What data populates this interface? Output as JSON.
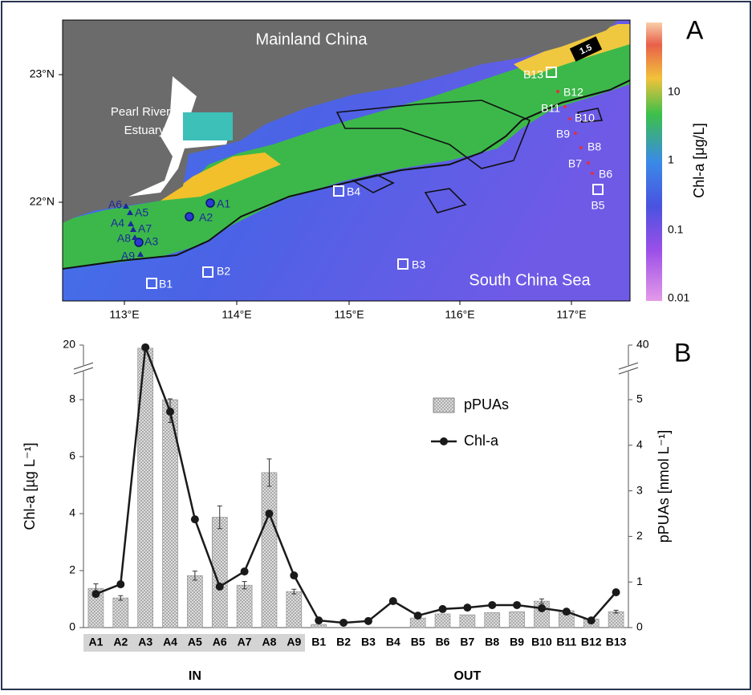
{
  "panels": [
    "A",
    "B"
  ],
  "map": {
    "labels": {
      "mainland": "Mainland China",
      "estuary": [
        "Pearl River",
        "Estuary"
      ],
      "sea": "South China Sea",
      "contour": "1.5"
    },
    "lon_ticks": [
      "113°E",
      "114°E",
      "115°E",
      "116°E",
      "117°E"
    ],
    "lat_ticks": [
      "23°N",
      "22°N"
    ],
    "colorbar": {
      "title": "Chl-a [μg/L]",
      "ticks": [
        "10",
        "1",
        "0.1",
        "0.01"
      ]
    },
    "stations": [
      "A1",
      "A2",
      "A3",
      "A4",
      "A5",
      "A6",
      "A7",
      "A8",
      "A9",
      "B1",
      "B2",
      "B3",
      "B4",
      "B5",
      "B6",
      "B7",
      "B8",
      "B9",
      "B10",
      "B11",
      "B12",
      "B13"
    ]
  },
  "chart_data": {
    "type": "bar",
    "categories": [
      "A1",
      "A2",
      "A3",
      "A4",
      "A5",
      "A6",
      "A7",
      "A8",
      "A9",
      "B1",
      "B2",
      "B3",
      "B4",
      "B5",
      "B6",
      "B7",
      "B8",
      "B9",
      "B10",
      "B11",
      "B12",
      "B13"
    ],
    "groups": [
      "IN",
      "OUT"
    ],
    "ylabel": "Chl-a [µg L⁻¹]",
    "y2label": "pPUAs [nmol L⁻¹]",
    "ylim": [
      0,
      20
    ],
    "yticks": [
      0,
      2,
      4,
      6,
      8,
      20
    ],
    "y2lim": [
      0,
      40
    ],
    "y2ticks": [
      0,
      1,
      2,
      3,
      4,
      5,
      40
    ],
    "axis_break": true,
    "series": [
      {
        "name": "pPUAs",
        "type": "bar",
        "axis": "y2",
        "color": "#cfcfcf",
        "values": [
          0.86,
          0.65,
          38,
          5.0,
          1.14,
          2.42,
          0.93,
          3.4,
          0.79,
          0.07,
          0,
          0,
          0,
          0.21,
          0.3,
          0.28,
          0.33,
          0.35,
          0.58,
          0.37,
          0.19,
          0.35
        ],
        "errors": [
          0.1,
          0.05,
          null,
          0.5,
          0.1,
          0.25,
          0.08,
          0.3,
          0.05,
          null,
          null,
          null,
          null,
          null,
          null,
          null,
          null,
          null,
          0.05,
          null,
          null,
          0.03
        ]
      },
      {
        "name": "Chl-a",
        "type": "line",
        "color": "#1a1a1a",
        "values": [
          1.18,
          1.52,
          19.5,
          7.58,
          3.8,
          1.44,
          1.97,
          4.0,
          1.83,
          0.25,
          0.17,
          0.23,
          0.93,
          0.42,
          0.65,
          0.7,
          0.79,
          0.79,
          0.68,
          0.56,
          0.25,
          1.24
        ]
      }
    ]
  }
}
